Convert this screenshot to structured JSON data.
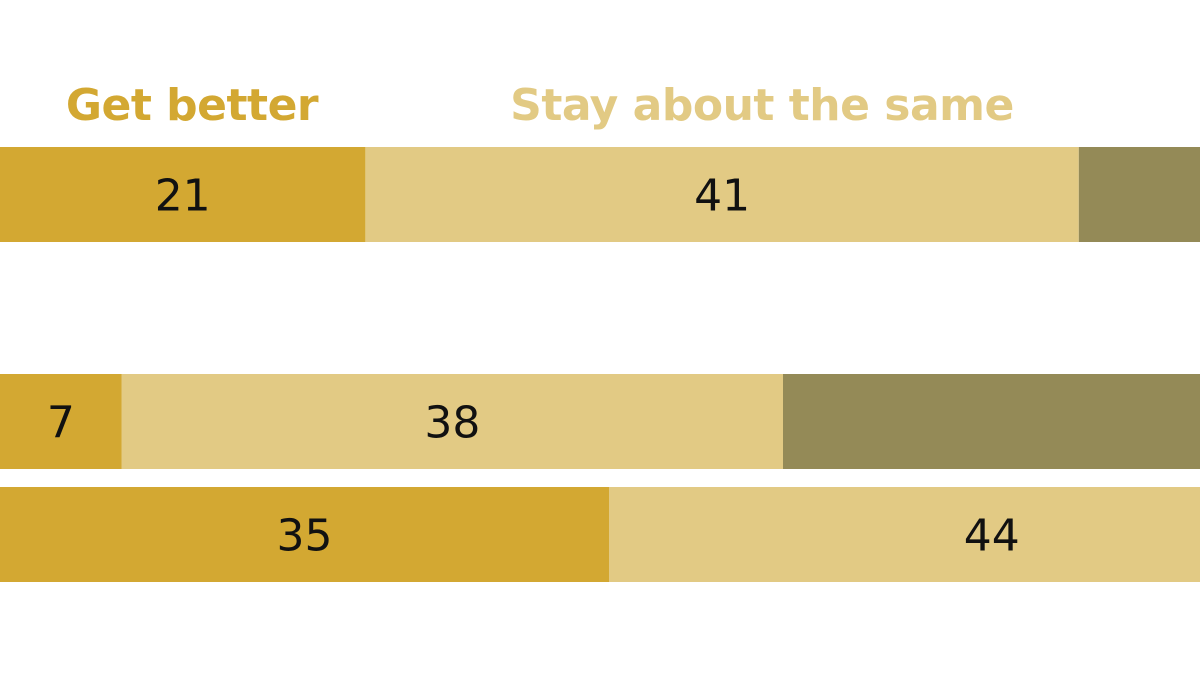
{
  "chart_data": {
    "type": "bar",
    "orientation": "horizontal",
    "stacked": true,
    "legend_position": "top",
    "grid": false,
    "series": [
      {
        "name": "Get better",
        "color": "#d3a832",
        "values": [
          21,
          7,
          35
        ]
      },
      {
        "name": "Stay about the same",
        "color": "#e2ca84",
        "values": [
          41,
          38,
          44
        ]
      },
      {
        "name": "",
        "color": "#948a57",
        "values": [
          null,
          null,
          null
        ]
      }
    ],
    "xlim": [
      0,
      100
    ]
  }
}
